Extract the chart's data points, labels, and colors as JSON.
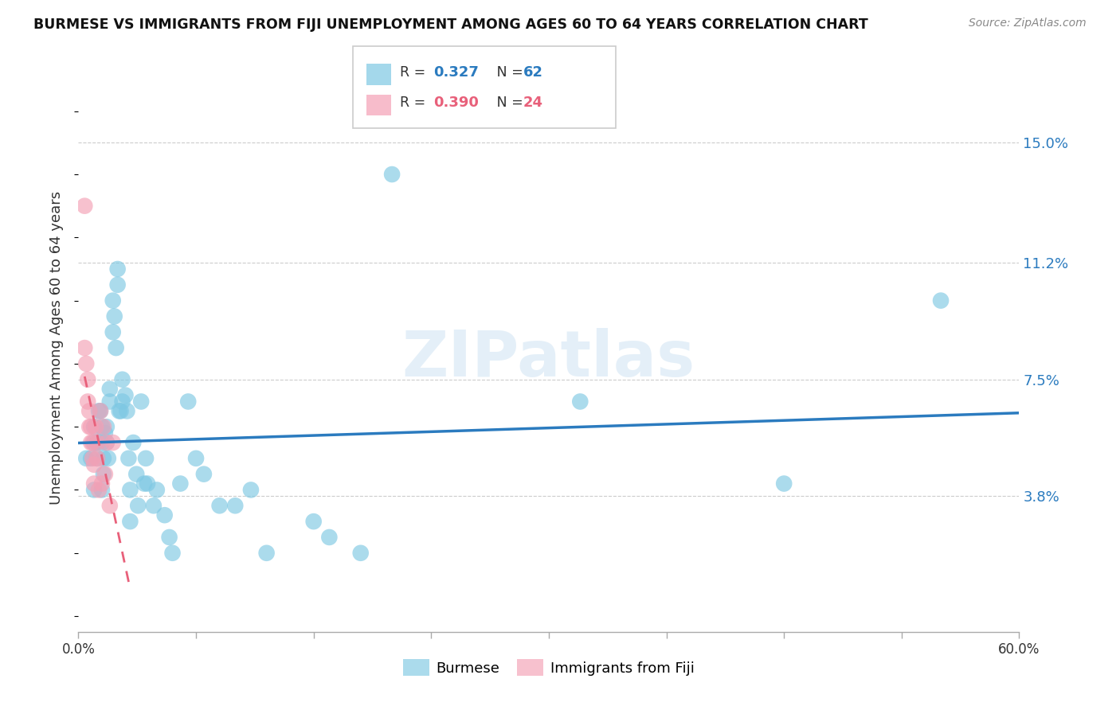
{
  "title": "BURMESE VS IMMIGRANTS FROM FIJI UNEMPLOYMENT AMONG AGES 60 TO 64 YEARS CORRELATION CHART",
  "source": "Source: ZipAtlas.com",
  "ylabel": "Unemployment Among Ages 60 to 64 years",
  "ytick_labels": [
    "15.0%",
    "11.2%",
    "7.5%",
    "3.8%"
  ],
  "ytick_values": [
    0.15,
    0.112,
    0.075,
    0.038
  ],
  "xlim": [
    0.0,
    0.6
  ],
  "ylim": [
    -0.005,
    0.175
  ],
  "legend_r_burmese": "0.327",
  "legend_n_burmese": "62",
  "legend_r_fiji": "0.390",
  "legend_n_fiji": "24",
  "burmese_color": "#7ec8e3",
  "fiji_color": "#f4a0b5",
  "burmese_line_color": "#2b7bbf",
  "fiji_line_color": "#e8607a",
  "watermark": "ZIPatlas",
  "burmese_x": [
    0.005,
    0.008,
    0.01,
    0.01,
    0.01,
    0.012,
    0.012,
    0.013,
    0.014,
    0.015,
    0.015,
    0.015,
    0.016,
    0.016,
    0.017,
    0.018,
    0.018,
    0.019,
    0.02,
    0.02,
    0.022,
    0.022,
    0.023,
    0.024,
    0.025,
    0.025,
    0.026,
    0.027,
    0.028,
    0.028,
    0.03,
    0.031,
    0.032,
    0.033,
    0.033,
    0.035,
    0.037,
    0.038,
    0.04,
    0.042,
    0.043,
    0.044,
    0.048,
    0.05,
    0.055,
    0.058,
    0.06,
    0.065,
    0.07,
    0.075,
    0.08,
    0.09,
    0.1,
    0.11,
    0.12,
    0.15,
    0.16,
    0.18,
    0.2,
    0.32,
    0.45,
    0.55
  ],
  "burmese_y": [
    0.05,
    0.05,
    0.055,
    0.06,
    0.04,
    0.05,
    0.055,
    0.065,
    0.065,
    0.06,
    0.055,
    0.04,
    0.05,
    0.045,
    0.058,
    0.055,
    0.06,
    0.05,
    0.072,
    0.068,
    0.09,
    0.1,
    0.095,
    0.085,
    0.11,
    0.105,
    0.065,
    0.065,
    0.075,
    0.068,
    0.07,
    0.065,
    0.05,
    0.04,
    0.03,
    0.055,
    0.045,
    0.035,
    0.068,
    0.042,
    0.05,
    0.042,
    0.035,
    0.04,
    0.032,
    0.025,
    0.02,
    0.042,
    0.068,
    0.05,
    0.045,
    0.035,
    0.035,
    0.04,
    0.02,
    0.03,
    0.025,
    0.02,
    0.14,
    0.068,
    0.042,
    0.1
  ],
  "fiji_x": [
    0.004,
    0.004,
    0.005,
    0.006,
    0.006,
    0.007,
    0.007,
    0.008,
    0.008,
    0.009,
    0.009,
    0.01,
    0.01,
    0.011,
    0.012,
    0.012,
    0.013,
    0.014,
    0.015,
    0.016,
    0.017,
    0.018,
    0.02,
    0.022
  ],
  "fiji_y": [
    0.13,
    0.085,
    0.08,
    0.075,
    0.068,
    0.065,
    0.06,
    0.06,
    0.055,
    0.055,
    0.05,
    0.048,
    0.042,
    0.06,
    0.055,
    0.05,
    0.04,
    0.065,
    0.042,
    0.06,
    0.045,
    0.055,
    0.035,
    0.055
  ]
}
